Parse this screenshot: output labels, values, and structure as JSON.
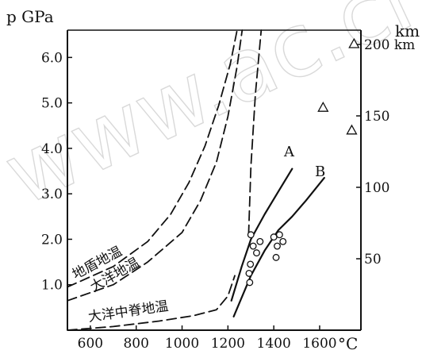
{
  "chart_data": {
    "type": "line",
    "xlabel": "°C",
    "ylabel": "p GPa",
    "y2label": "km",
    "xlim": [
      500,
      1780
    ],
    "ylim": [
      0,
      6.6
    ],
    "y2lim": [
      0,
      210
    ],
    "x_ticks": [
      {
        "value": 600,
        "label": "600"
      },
      {
        "value": 800,
        "label": "800"
      },
      {
        "value": 1000,
        "label": "1000"
      },
      {
        "value": 1200,
        "label": "1200"
      },
      {
        "value": 1400,
        "label": "1400"
      },
      {
        "value": 1600,
        "label": "1600"
      }
    ],
    "y_ticks": [
      {
        "value": 1.0,
        "label": "1.0"
      },
      {
        "value": 2.0,
        "label": "2.0"
      },
      {
        "value": 3.0,
        "label": "3.0"
      },
      {
        "value": 4.0,
        "label": "4.0"
      },
      {
        "value": 5.0,
        "label": "5.0"
      },
      {
        "value": 6.0,
        "label": "6.0"
      }
    ],
    "y2_ticks": [
      {
        "value": 50,
        "label": "50"
      },
      {
        "value": 100,
        "label": "100"
      },
      {
        "value": 150,
        "label": "150"
      },
      {
        "value": 200,
        "label": "200 km"
      }
    ],
    "series": [
      {
        "name": "地盾地温",
        "style": "dashed",
        "x": [
          500,
          700,
          850,
          950,
          1030,
          1100,
          1160,
          1210,
          1240
        ],
        "y": [
          0.95,
          1.4,
          1.95,
          2.55,
          3.25,
          4.05,
          4.95,
          5.85,
          6.6
        ]
      },
      {
        "name": "大洋地温",
        "style": "dashed",
        "x": [
          500,
          700,
          850,
          1000,
          1080,
          1150,
          1200,
          1240,
          1262
        ],
        "y": [
          0.65,
          1.0,
          1.5,
          2.15,
          2.85,
          3.7,
          4.7,
          5.8,
          6.6
        ]
      },
      {
        "name": "大洋中脊地温",
        "style": "dashed",
        "x": [
          500,
          700,
          900,
          1050,
          1150,
          1200,
          1230
        ],
        "y": [
          0.0,
          0.08,
          0.2,
          0.32,
          0.45,
          0.75,
          1.2
        ]
      },
      {
        "name": "",
        "style": "dashed",
        "x": [
          1290,
          1300,
          1320,
          1345
        ],
        "y": [
          2.1,
          3.6,
          5.2,
          6.6
        ]
      },
      {
        "name": "A",
        "style": "solid",
        "x": [
          1215,
          1260,
          1300,
          1360,
          1420,
          1480
        ],
        "y": [
          0.65,
          1.4,
          2.0,
          2.55,
          3.05,
          3.55
        ]
      },
      {
        "name": "B",
        "style": "solid",
        "x": [
          1225,
          1300,
          1360,
          1420,
          1480,
          1540,
          1620
        ],
        "y": [
          0.3,
          1.2,
          1.75,
          2.2,
          2.5,
          2.85,
          3.35
        ]
      }
    ],
    "points_circles": [
      {
        "x": 1300,
        "y": 2.1
      },
      {
        "x": 1310,
        "y": 1.85
      },
      {
        "x": 1325,
        "y": 1.7
      },
      {
        "x": 1340,
        "y": 1.95
      },
      {
        "x": 1298,
        "y": 1.45
      },
      {
        "x": 1292,
        "y": 1.25
      },
      {
        "x": 1295,
        "y": 1.05
      },
      {
        "x": 1400,
        "y": 2.05
      },
      {
        "x": 1425,
        "y": 2.1
      },
      {
        "x": 1415,
        "y": 1.85
      },
      {
        "x": 1440,
        "y": 1.95
      },
      {
        "x": 1410,
        "y": 1.6
      }
    ],
    "points_triangles": [
      {
        "x": 1750,
        "y": 6.3
      },
      {
        "x": 1615,
        "y": 4.9
      },
      {
        "x": 1740,
        "y": 4.4
      }
    ],
    "grid": false,
    "watermark": "www.ac.cn"
  }
}
